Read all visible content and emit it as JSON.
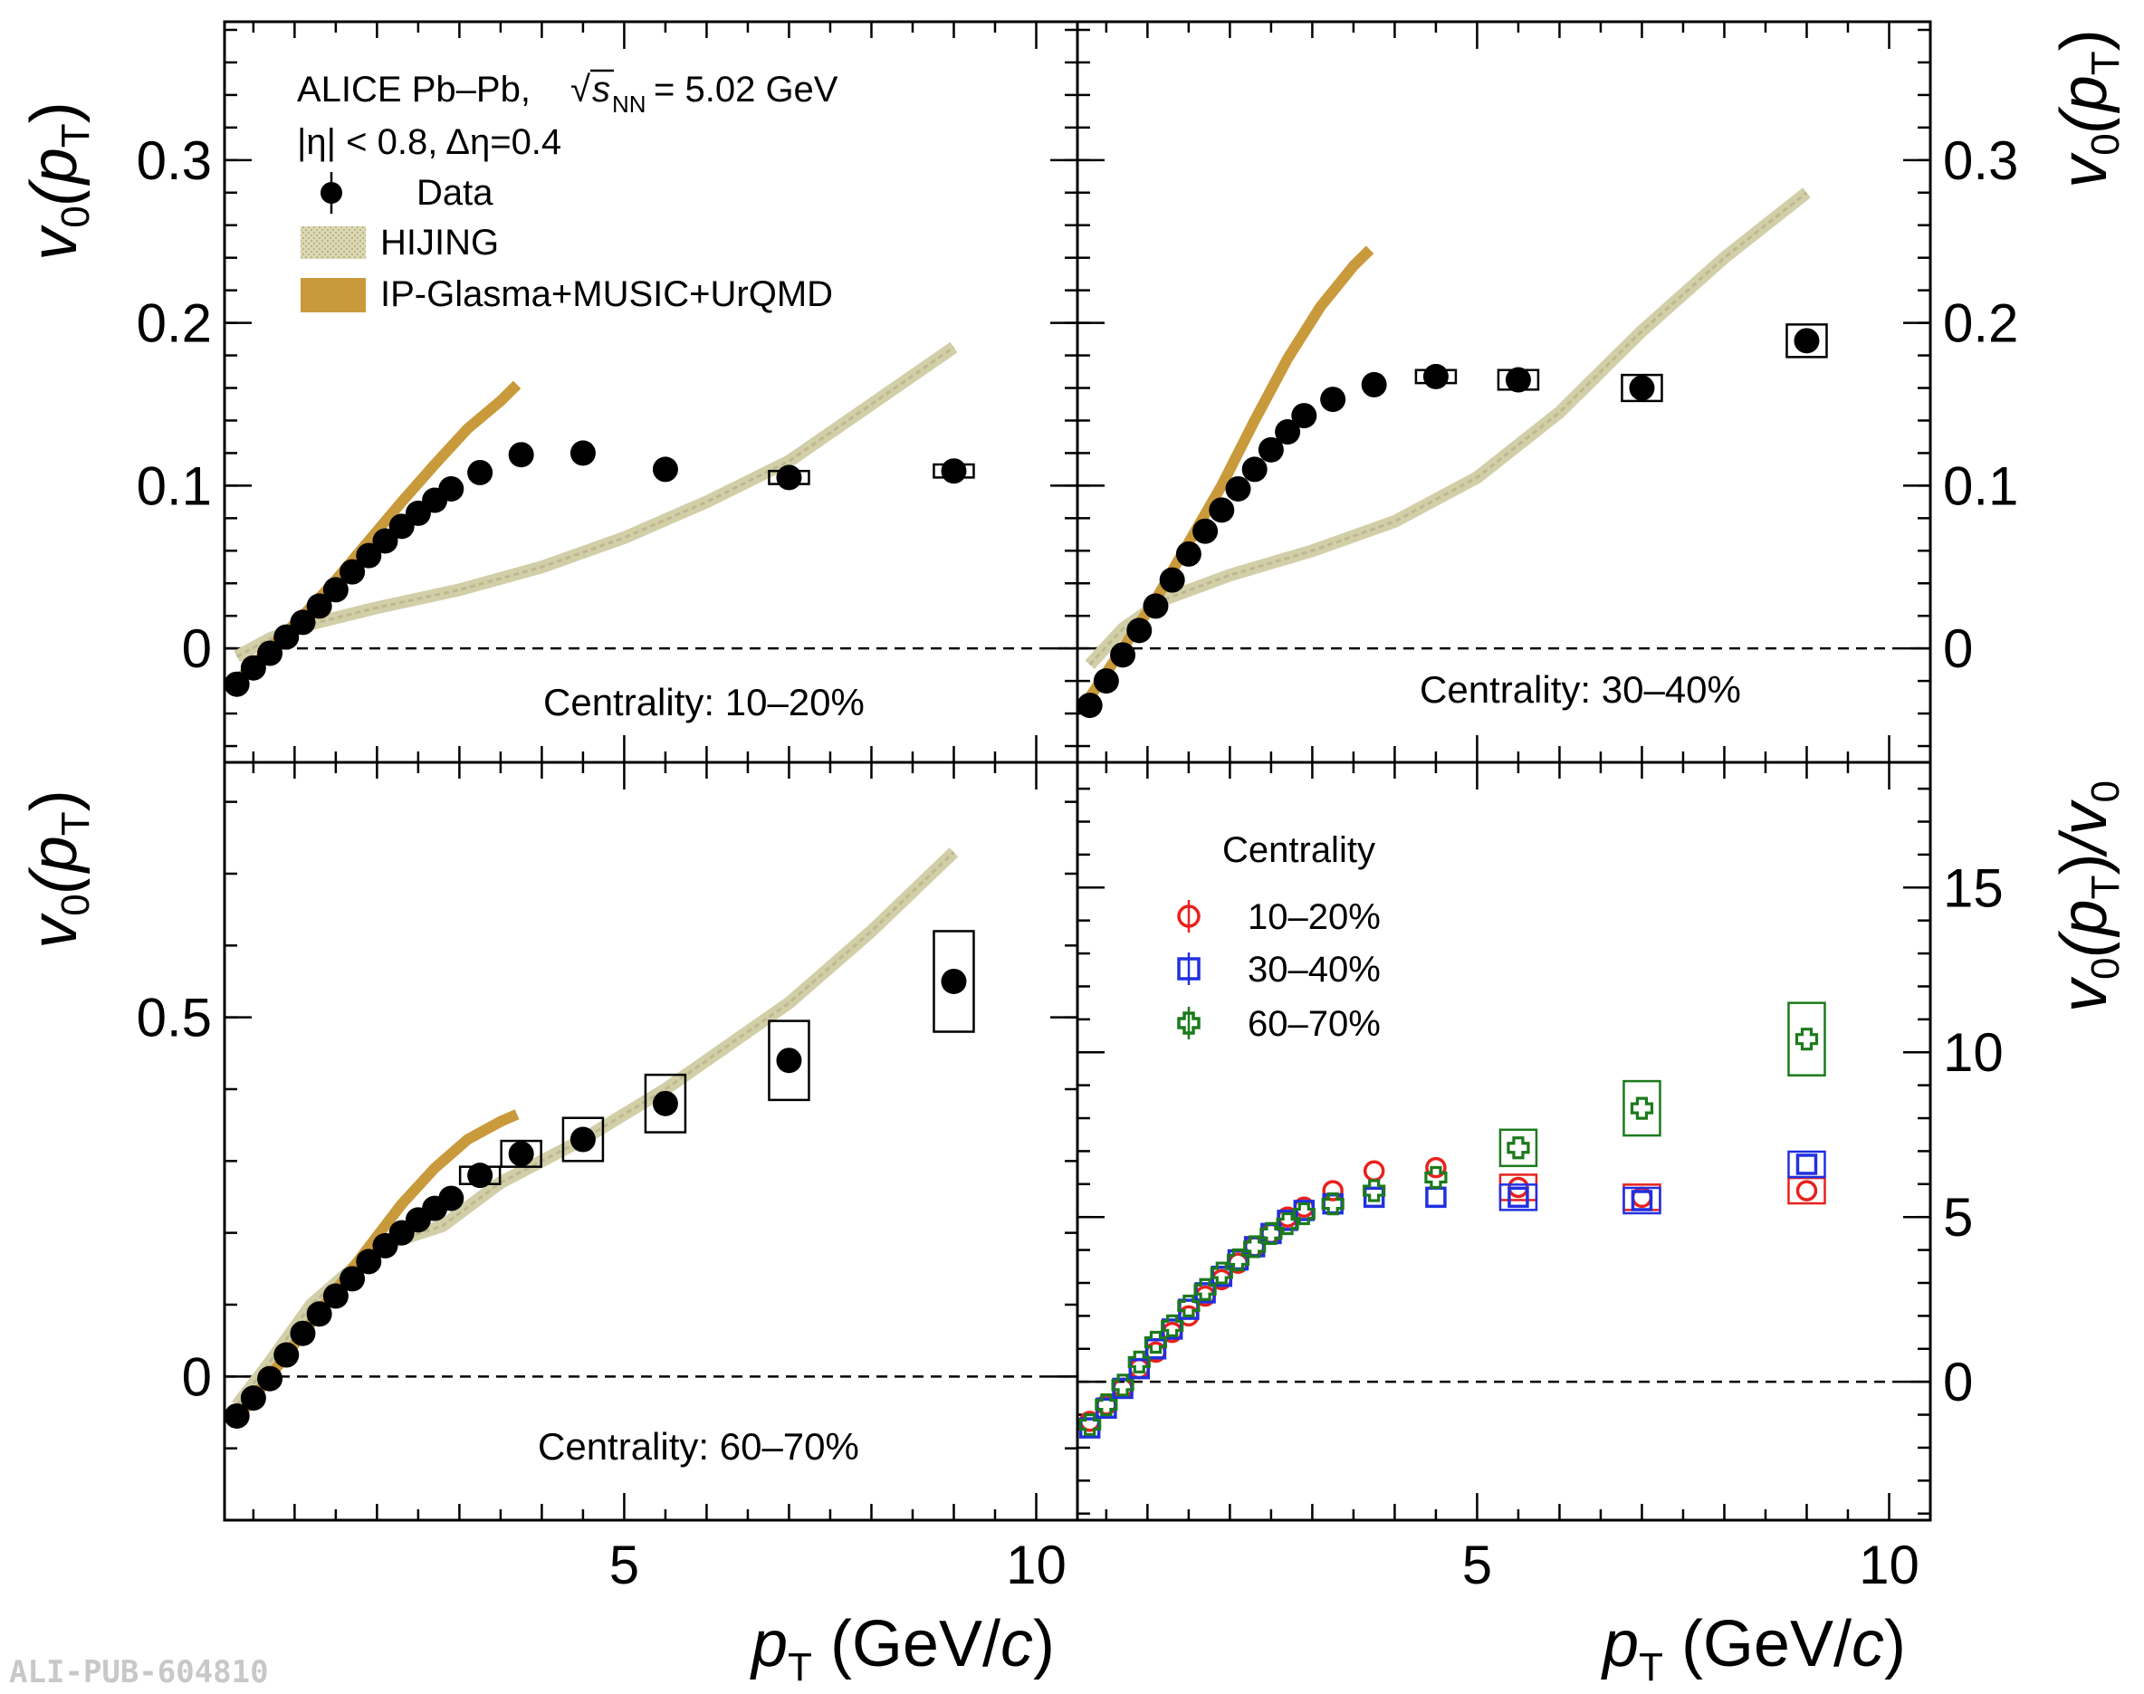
{
  "header": {
    "experiment": "ALICE Pb–Pb,",
    "energy_sqrt": "s",
    "energy_sub": "NN",
    "energy_value": "= 5.02 GeV",
    "eta_cut": "|η| < 0.8, Δη=0.4"
  },
  "legend": {
    "data": "Data",
    "hijing": "HIJING",
    "ipglasma": "IP-Glasma+MUSIC+UrQMD",
    "centrality_title": "Centrality"
  },
  "labels": {
    "ylabel_v0": "v",
    "ylabel_v0_sub": "0",
    "ylabel_pt": "(p",
    "ylabel_pt_sub": "T",
    "ylabel_close": ")",
    "ylabel_ratio_tail": "/v",
    "xlabel_p": "p",
    "xlabel_sub": "T",
    "xlabel_unit": " (GeV/",
    "xlabel_c": "c",
    "xlabel_close": ")",
    "pub_id": "ALI-PUB-604810"
  },
  "colors": {
    "data": "#000000",
    "hijing": "#d2cfa8",
    "ipglasma": "#c99a3c",
    "c1020": "#e8211d",
    "c3040": "#2030e0",
    "c6070": "#1c7a1c"
  },
  "chart_data": [
    {
      "type": "scatter",
      "panel": "top-left",
      "centrality_label": "Centrality: 10–20%",
      "xlim": [
        0.15,
        10.5
      ],
      "ylim": [
        -0.07,
        0.385
      ],
      "yticks": [
        0,
        0.1,
        0.2,
        0.3
      ],
      "ytick_labels": [
        "0",
        "0.1",
        "0.2",
        "0.3"
      ],
      "data": {
        "x": [
          0.3,
          0.5,
          0.7,
          0.9,
          1.1,
          1.3,
          1.5,
          1.7,
          1.9,
          2.1,
          2.3,
          2.5,
          2.7,
          2.9,
          3.25,
          3.75,
          4.5,
          5.5,
          7.0,
          9.0
        ],
        "y": [
          -0.022,
          -0.012,
          -0.003,
          0.007,
          0.016,
          0.026,
          0.036,
          0.047,
          0.057,
          0.066,
          0.075,
          0.083,
          0.091,
          0.098,
          0.108,
          0.119,
          0.12,
          0.11,
          0.105,
          0.109
        ],
        "syst": [
          0,
          0,
          0,
          0,
          0,
          0,
          0,
          0,
          0,
          0,
          0,
          0,
          0,
          0,
          0,
          0,
          0,
          0,
          0.004,
          0.004
        ]
      },
      "hijing": {
        "x": [
          0.3,
          0.7,
          1.2,
          2.0,
          3.0,
          4.0,
          5.0,
          6.0,
          7.0,
          8.0,
          9.0
        ],
        "y": [
          -0.005,
          0.006,
          0.015,
          0.025,
          0.036,
          0.05,
          0.068,
          0.09,
          0.115,
          0.15,
          0.185
        ]
      },
      "ipglasma": {
        "x": [
          0.3,
          0.7,
          1.1,
          1.5,
          1.9,
          2.3,
          2.7,
          3.1,
          3.5,
          3.7
        ],
        "y": [
          -0.02,
          0.0,
          0.02,
          0.042,
          0.066,
          0.09,
          0.113,
          0.135,
          0.152,
          0.162
        ]
      }
    },
    {
      "type": "scatter",
      "panel": "top-right",
      "centrality_label": "Centrality: 30–40%",
      "xlim": [
        0.15,
        10.5
      ],
      "ylim": [
        -0.07,
        0.385
      ],
      "yticks": [
        0,
        0.1,
        0.2,
        0.3
      ],
      "ytick_labels": [
        "0",
        "0.1",
        "0.2",
        "0.3"
      ],
      "data": {
        "x": [
          0.3,
          0.5,
          0.7,
          0.9,
          1.1,
          1.3,
          1.5,
          1.7,
          1.9,
          2.1,
          2.3,
          2.5,
          2.7,
          2.9,
          3.25,
          3.75,
          4.5,
          5.5,
          7.0,
          9.0
        ],
        "y": [
          -0.035,
          -0.02,
          -0.004,
          0.011,
          0.026,
          0.042,
          0.058,
          0.072,
          0.085,
          0.098,
          0.11,
          0.122,
          0.133,
          0.143,
          0.153,
          0.162,
          0.167,
          0.165,
          0.16,
          0.189
        ],
        "syst": [
          0,
          0,
          0,
          0,
          0,
          0,
          0,
          0,
          0,
          0,
          0,
          0,
          0,
          0,
          0,
          0,
          0.004,
          0.006,
          0.008,
          0.01
        ]
      },
      "hijing": {
        "x": [
          0.3,
          0.7,
          1.2,
          2.0,
          3.0,
          4.0,
          5.0,
          6.0,
          7.0,
          8.0,
          9.0
        ],
        "y": [
          -0.01,
          0.012,
          0.03,
          0.045,
          0.06,
          0.078,
          0.105,
          0.145,
          0.195,
          0.24,
          0.28
        ]
      },
      "ipglasma": {
        "x": [
          0.3,
          0.7,
          1.1,
          1.5,
          1.9,
          2.3,
          2.7,
          3.1,
          3.5,
          3.7
        ],
        "y": [
          -0.03,
          0.0,
          0.03,
          0.065,
          0.1,
          0.14,
          0.178,
          0.21,
          0.235,
          0.245
        ]
      }
    },
    {
      "type": "scatter",
      "panel": "bottom-left",
      "centrality_label": "Centrality: 60–70%",
      "xlim": [
        0.15,
        10.5
      ],
      "ylim": [
        -0.2,
        0.855
      ],
      "yticks": [
        0,
        0.5
      ],
      "ytick_labels": [
        "0",
        "0.5"
      ],
      "xticks": [
        5,
        10
      ],
      "xtick_labels": [
        "5",
        "10"
      ],
      "data": {
        "x": [
          0.3,
          0.5,
          0.7,
          0.9,
          1.1,
          1.3,
          1.5,
          1.7,
          1.9,
          2.1,
          2.3,
          2.5,
          2.7,
          2.9,
          3.25,
          3.75,
          4.5,
          5.5,
          7.0,
          9.0
        ],
        "y": [
          -0.055,
          -0.03,
          -0.003,
          0.03,
          0.06,
          0.087,
          0.112,
          0.136,
          0.16,
          0.182,
          0.2,
          0.218,
          0.234,
          0.248,
          0.28,
          0.31,
          0.33,
          0.38,
          0.44,
          0.55
        ],
        "syst": [
          0,
          0,
          0,
          0,
          0,
          0,
          0,
          0,
          0,
          0,
          0,
          0,
          0,
          0,
          0.012,
          0.018,
          0.03,
          0.04,
          0.055,
          0.07
        ]
      },
      "hijing": {
        "x": [
          0.3,
          0.7,
          1.2,
          2.0,
          2.8,
          3.5,
          4.5,
          5.5,
          7.0,
          8.0,
          9.0
        ],
        "y": [
          -0.04,
          0.02,
          0.1,
          0.18,
          0.21,
          0.27,
          0.33,
          0.4,
          0.52,
          0.62,
          0.73
        ]
      },
      "ipglasma": {
        "x": [
          0.3,
          0.7,
          1.1,
          1.5,
          1.9,
          2.3,
          2.7,
          3.1,
          3.5,
          3.7
        ],
        "y": [
          -0.06,
          0.0,
          0.06,
          0.12,
          0.18,
          0.24,
          0.29,
          0.33,
          0.355,
          0.365
        ]
      }
    },
    {
      "type": "scatter",
      "panel": "bottom-right",
      "xlim": [
        0.15,
        10.5
      ],
      "ylim": [
        -4.2,
        18.8
      ],
      "yticks": [
        0,
        5,
        10,
        15
      ],
      "ytick_labels": [
        "0",
        "5",
        "10",
        "15"
      ],
      "xticks": [
        5,
        10
      ],
      "xtick_labels": [
        "5",
        "10"
      ],
      "series": [
        {
          "name": "10–20%",
          "marker": "circle",
          "x": [
            0.3,
            0.5,
            0.7,
            0.9,
            1.1,
            1.3,
            1.5,
            1.7,
            1.9,
            2.1,
            2.3,
            2.5,
            2.7,
            2.9,
            3.25,
            3.75,
            4.5,
            5.5,
            7.0,
            9.0
          ],
          "y": [
            -1.2,
            -0.7,
            -0.2,
            0.4,
            0.9,
            1.5,
            2.0,
            2.6,
            3.1,
            3.6,
            4.1,
            4.5,
            5.0,
            5.3,
            5.8,
            6.4,
            6.5,
            5.9,
            5.6,
            5.8
          ]
        },
        {
          "name": "30–40%",
          "marker": "square",
          "x": [
            0.3,
            0.5,
            0.7,
            0.9,
            1.1,
            1.3,
            1.5,
            1.7,
            1.9,
            2.1,
            2.3,
            2.5,
            2.7,
            2.9,
            3.25,
            3.75,
            4.5,
            5.5,
            7.0,
            9.0
          ],
          "y": [
            -1.4,
            -0.8,
            -0.2,
            0.4,
            1.0,
            1.6,
            2.2,
            2.7,
            3.2,
            3.7,
            4.1,
            4.5,
            4.9,
            5.2,
            5.4,
            5.6,
            5.6,
            5.6,
            5.5,
            6.6
          ]
        },
        {
          "name": "60–70%",
          "marker": "cross",
          "x": [
            0.3,
            0.5,
            0.7,
            0.9,
            1.1,
            1.3,
            1.5,
            1.7,
            1.9,
            2.1,
            2.3,
            2.5,
            2.7,
            2.9,
            3.25,
            3.75,
            4.5,
            5.5,
            7.0,
            9.0
          ],
          "y": [
            -1.3,
            -0.7,
            -0.1,
            0.6,
            1.2,
            1.7,
            2.3,
            2.8,
            3.3,
            3.7,
            4.1,
            4.5,
            4.8,
            5.1,
            5.4,
            5.8,
            6.2,
            7.1,
            8.3,
            10.4
          ]
        }
      ]
    }
  ]
}
